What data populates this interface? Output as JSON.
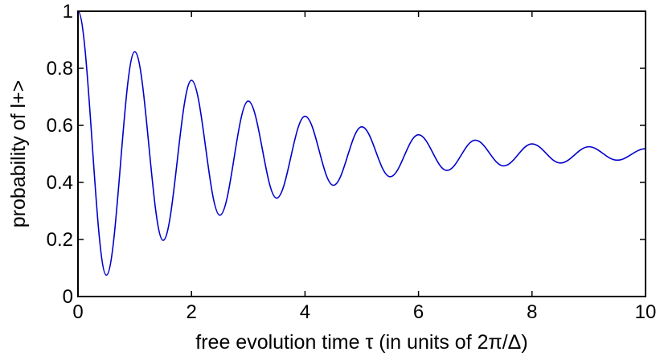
{
  "chart_data": {
    "type": "line",
    "title": "",
    "xlabel": "free evolution time τ (in units of 2π/Δ)",
    "ylabel": "probability of l+>",
    "xlim": [
      0,
      10
    ],
    "ylim": [
      0,
      1
    ],
    "xticks": [
      "0",
      "2",
      "4",
      "6",
      "8",
      "10"
    ],
    "yticks": [
      "0",
      "0.2",
      "0.4",
      "0.6",
      "0.8",
      "1"
    ],
    "grid": false,
    "legend": "none",
    "series": [
      {
        "color": "#0000cc",
        "points": [
          [
            0.0,
            1.0
          ],
          [
            0.5,
            0.075
          ],
          [
            1.0,
            0.858
          ],
          [
            1.5,
            0.197
          ],
          [
            2.0,
            0.758
          ],
          [
            2.5,
            0.285
          ],
          [
            3.0,
            0.685
          ],
          [
            3.5,
            0.345
          ],
          [
            4.0,
            0.632
          ],
          [
            4.5,
            0.39
          ],
          [
            5.0,
            0.595
          ],
          [
            5.5,
            0.42
          ],
          [
            6.0,
            0.567
          ],
          [
            6.5,
            0.442
          ],
          [
            7.0,
            0.548
          ],
          [
            7.5,
            0.458
          ],
          [
            8.0,
            0.535
          ],
          [
            8.5,
            0.468
          ],
          [
            9.0,
            0.525
          ],
          [
            9.5,
            0.478
          ],
          [
            10.0,
            0.518
          ]
        ]
      }
    ]
  }
}
